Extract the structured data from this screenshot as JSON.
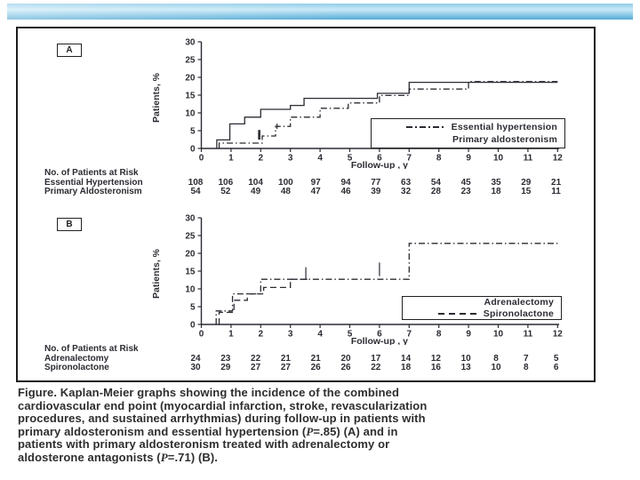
{
  "theme": {
    "ink": "#2b2b33",
    "accent_bar_top": "#8fcce8",
    "accent_bar_mid": "#c9e9f7",
    "accent_bar_bottom": "#57aad4"
  },
  "caption": {
    "lines": [
      "Figure. Kaplan-Meier graphs showing the incidence of the combined",
      "cardiovascular end point (myocardial infarction, stroke, revascularization",
      "procedures, and sustained arrhythmias) during follow-up in patients with",
      "primary aldosteronism and essential hypertension (P=.85) (A) and in",
      "patients with primary aldosteronism treated with adrenalectomy or",
      "aldosterone antagonists (P=.71) (B)."
    ]
  },
  "chart_data": [
    {
      "panel": "A",
      "type": "line",
      "subtype": "kaplan-meier-step",
      "title": "",
      "xlabel": "Follow-up , y",
      "ylabel": "Patients, %",
      "xlim": [
        0,
        12
      ],
      "ylim": [
        0,
        30
      ],
      "xticks": [
        0,
        1,
        2,
        3,
        4,
        5,
        6,
        7,
        8,
        9,
        10,
        11,
        12
      ],
      "yticks": [
        0,
        5,
        10,
        15,
        20,
        25,
        30
      ],
      "grid": false,
      "legend_position": "lower-right-box",
      "series": [
        {
          "name": "Essential hypertension",
          "line_style": "dash-dot",
          "steps": [
            [
              0.6,
              1.5
            ],
            [
              2.05,
              3.5
            ],
            [
              2.5,
              6.2
            ],
            [
              3.0,
              8.8
            ],
            [
              4.0,
              11.3
            ],
            [
              4.95,
              12.8
            ],
            [
              6.0,
              14.9
            ],
            [
              7.0,
              16.7
            ],
            [
              9.0,
              18.8
            ]
          ],
          "end_x": 12
        },
        {
          "name": "Primary aldosteronism",
          "line_style": "solid",
          "steps": [
            [
              0.52,
              2.4
            ],
            [
              0.96,
              6.9
            ],
            [
              1.46,
              8.8
            ],
            [
              2.0,
              11.0
            ],
            [
              3.0,
              12.1
            ],
            [
              3.46,
              14.1
            ],
            [
              5.93,
              15.5
            ],
            [
              7.0,
              18.6
            ]
          ],
          "end_x": 12
        }
      ],
      "censor_marks": [
        {
          "x": 1.95,
          "y1": 2.5,
          "y2": 5.2,
          "w": 2.6
        },
        {
          "x": 2.55,
          "y1": 5.5,
          "y2": 7.0,
          "w": 1.2
        }
      ],
      "at_risk": {
        "title": "No. of Patients at Risk",
        "rows": [
          {
            "label": "Essential Hypertension",
            "values": [
              108,
              106,
              104,
              100,
              97,
              94,
              77,
              63,
              54,
              45,
              35,
              29,
              21
            ]
          },
          {
            "label": "Primary Aldosteronism",
            "values": [
              54,
              52,
              49,
              48,
              47,
              46,
              39,
              32,
              28,
              23,
              18,
              15,
              11
            ]
          }
        ]
      }
    },
    {
      "panel": "B",
      "type": "line",
      "subtype": "kaplan-meier-step",
      "title": "",
      "xlabel": "Follow-up , y",
      "ylabel": "Patients, %",
      "xlim": [
        0,
        12
      ],
      "ylim": [
        0,
        30
      ],
      "xticks": [
        0,
        1,
        2,
        3,
        4,
        5,
        6,
        7,
        8,
        9,
        10,
        11,
        12
      ],
      "yticks": [
        0,
        5,
        10,
        15,
        20,
        25,
        30
      ],
      "grid": false,
      "legend_position": "lower-right-box",
      "series": [
        {
          "name": "Adrenalectomy",
          "line_style": "dash-dot",
          "steps": [
            [
              0.5,
              3.8
            ],
            [
              1.05,
              8.6
            ],
            [
              2.0,
              12.7
            ],
            [
              7.0,
              22.8
            ]
          ],
          "end_x": 12
        },
        {
          "name": "Spironolactone",
          "line_style": "dash",
          "steps": [
            [
              0.6,
              3.4
            ],
            [
              1.1,
              6.8
            ],
            [
              1.55,
              8.6
            ],
            [
              2.1,
              10.4
            ],
            [
              3.0,
              12.7
            ]
          ],
          "end_x": 3.6
        }
      ],
      "censor_marks": [
        {
          "x": 3.52,
          "y1": 12.8,
          "y2": 16.1,
          "w": 1.2
        },
        {
          "x": 6.0,
          "y1": 13.6,
          "y2": 17.4,
          "w": 1.2
        }
      ],
      "at_risk": {
        "title": "No. of Patients at Risk",
        "rows": [
          {
            "label": "Adrenalectomy",
            "values": [
              24,
              23,
              22,
              21,
              21,
              20,
              17,
              14,
              12,
              10,
              8,
              7,
              5
            ]
          },
          {
            "label": "Spironolactone",
            "values": [
              30,
              29,
              27,
              27,
              26,
              26,
              22,
              18,
              16,
              13,
              10,
              8,
              6
            ]
          }
        ]
      }
    }
  ]
}
